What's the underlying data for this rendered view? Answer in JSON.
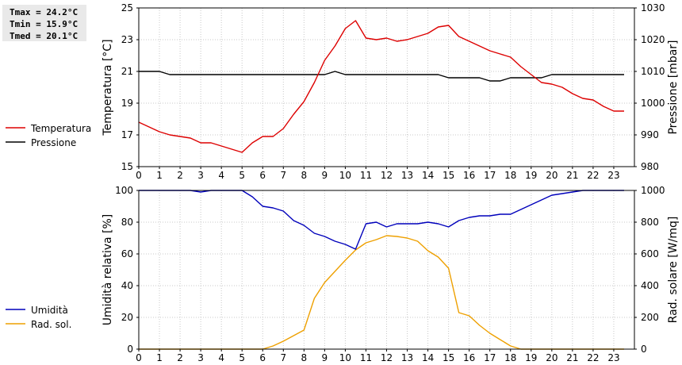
{
  "stats": {
    "tmax": "Tmax = 24.2°C",
    "tmin": "Tmin = 15.9°C",
    "tmed": "Tmed = 20.1°C"
  },
  "colors": {
    "temperature": "#dd0000",
    "pressure": "#000000",
    "humidity": "#0000bb",
    "radiation": "#eea000",
    "grid": "#c8c8c8"
  },
  "chart_data": [
    {
      "type": "line",
      "xlabel": "",
      "ylabel": "Temperatura [°C]",
      "y2label": "Pressione [mbar]",
      "xlim": [
        0,
        24
      ],
      "ylim": [
        15,
        25
      ],
      "y2lim": [
        980,
        1030
      ],
      "x_ticks": [
        "0",
        "1",
        "2",
        "3",
        "4",
        "5",
        "6",
        "7",
        "8",
        "9",
        "10",
        "11",
        "12",
        "13",
        "14",
        "15",
        "16",
        "17",
        "18",
        "19",
        "20",
        "21",
        "22",
        "23"
      ],
      "y_ticks": [
        "15",
        "17",
        "19",
        "21",
        "23",
        "25"
      ],
      "y2_ticks": [
        "980",
        "990",
        "1000",
        "1010",
        "1020",
        "1030"
      ],
      "grid": true,
      "legend_position": "left",
      "series": [
        {
          "name": "Temperatura",
          "axis": "left",
          "x": [
            0,
            0.5,
            1,
            1.5,
            2,
            2.5,
            3,
            3.5,
            4,
            4.5,
            5,
            5.5,
            6,
            6.5,
            7,
            7.5,
            8,
            8.5,
            9,
            9.5,
            10,
            10.5,
            11,
            11.5,
            12,
            12.5,
            13,
            13.5,
            14,
            14.5,
            15,
            15.5,
            16,
            16.5,
            17,
            17.5,
            18,
            18.5,
            19,
            19.5,
            20,
            20.5,
            21,
            21.5,
            22,
            22.5,
            23,
            23.5
          ],
          "values": [
            17.8,
            17.5,
            17.2,
            17.0,
            16.9,
            16.8,
            16.5,
            16.5,
            16.3,
            16.1,
            15.9,
            16.5,
            16.9,
            16.9,
            17.4,
            18.3,
            19.1,
            20.3,
            21.7,
            22.6,
            23.7,
            24.2,
            23.1,
            23.0,
            23.1,
            22.9,
            23.0,
            23.2,
            23.4,
            23.8,
            23.9,
            23.2,
            22.9,
            22.6,
            22.3,
            22.1,
            21.9,
            21.3,
            20.8,
            20.3,
            20.2,
            20.0,
            19.6,
            19.3,
            19.2,
            18.8,
            18.5,
            18.5
          ]
        },
        {
          "name": "Pressione",
          "axis": "right",
          "x": [
            0,
            0.5,
            1,
            1.5,
            2,
            2.5,
            3,
            3.5,
            4,
            4.5,
            5,
            5.5,
            6,
            6.5,
            7,
            7.5,
            8,
            8.5,
            9,
            9.5,
            10,
            10.5,
            11,
            11.5,
            12,
            12.5,
            13,
            13.5,
            14,
            14.5,
            15,
            15.5,
            16,
            16.5,
            17,
            17.5,
            18,
            18.5,
            19,
            19.5,
            20,
            20.5,
            21,
            21.5,
            22,
            22.5,
            23,
            23.5
          ],
          "values": [
            1010,
            1010,
            1010,
            1009,
            1009,
            1009,
            1009,
            1009,
            1009,
            1009,
            1009,
            1009,
            1009,
            1009,
            1009,
            1009,
            1009,
            1009,
            1009,
            1010,
            1009,
            1009,
            1009,
            1009,
            1009,
            1009,
            1009,
            1009,
            1009,
            1009,
            1008,
            1008,
            1008,
            1008,
            1007,
            1007,
            1008,
            1008,
            1008,
            1008,
            1009,
            1009,
            1009,
            1009,
            1009,
            1009,
            1009,
            1009
          ]
        }
      ]
    },
    {
      "type": "line",
      "xlabel": "",
      "ylabel": "Umidità relativa [%]",
      "y2label": "Rad. solare [W/mq]",
      "xlim": [
        0,
        24
      ],
      "ylim": [
        0,
        100
      ],
      "y2lim": [
        0,
        1000
      ],
      "x_ticks": [
        "0",
        "1",
        "2",
        "3",
        "4",
        "5",
        "6",
        "7",
        "8",
        "9",
        "10",
        "11",
        "12",
        "13",
        "14",
        "15",
        "16",
        "17",
        "18",
        "19",
        "20",
        "21",
        "22",
        "23"
      ],
      "y_ticks": [
        "0",
        "20",
        "40",
        "60",
        "80",
        "100"
      ],
      "y2_ticks": [
        "0",
        "200",
        "400",
        "600",
        "800",
        "1000"
      ],
      "grid": true,
      "legend_position": "left",
      "series": [
        {
          "name": "Umidità",
          "axis": "left",
          "x": [
            0,
            0.5,
            1,
            1.5,
            2,
            2.5,
            3,
            3.5,
            4,
            4.5,
            5,
            5.5,
            6,
            6.5,
            7,
            7.5,
            8,
            8.5,
            9,
            9.5,
            10,
            10.5,
            11,
            11.5,
            12,
            12.5,
            13,
            13.5,
            14,
            14.5,
            15,
            15.5,
            16,
            16.5,
            17,
            17.5,
            18,
            18.5,
            19,
            19.5,
            20,
            20.5,
            21,
            21.5,
            22,
            22.5,
            23,
            23.5
          ],
          "values": [
            100,
            100,
            100,
            100,
            100,
            100,
            99,
            100,
            100,
            100,
            100,
            96,
            90,
            89,
            87,
            81,
            78,
            73,
            71,
            68,
            66,
            63,
            79,
            80,
            77,
            79,
            79,
            79,
            80,
            79,
            77,
            81,
            83,
            84,
            84,
            85,
            85,
            88,
            91,
            94,
            97,
            98,
            99,
            100,
            100,
            100,
            100,
            100
          ]
        },
        {
          "name": "Rad. sol.",
          "axis": "right",
          "x": [
            0,
            0.5,
            1,
            1.5,
            2,
            2.5,
            3,
            3.5,
            4,
            4.5,
            5,
            5.5,
            6,
            6.5,
            7,
            7.5,
            8,
            8.5,
            9,
            9.5,
            10,
            10.5,
            11,
            11.5,
            12,
            12.5,
            13,
            13.5,
            14,
            14.5,
            15,
            15.5,
            16,
            16.5,
            17,
            17.5,
            18,
            18.5,
            19,
            19.5,
            20,
            20.5,
            21,
            21.5,
            22,
            22.5,
            23,
            23.5
          ],
          "values": [
            0,
            0,
            0,
            0,
            0,
            0,
            0,
            0,
            0,
            0,
            0,
            0,
            0,
            20,
            50,
            85,
            120,
            320,
            420,
            490,
            560,
            625,
            670,
            690,
            715,
            710,
            700,
            680,
            620,
            580,
            510,
            230,
            210,
            150,
            100,
            60,
            20,
            0,
            0,
            0,
            0,
            0,
            0,
            0,
            0,
            0,
            0,
            0
          ]
        }
      ]
    }
  ]
}
